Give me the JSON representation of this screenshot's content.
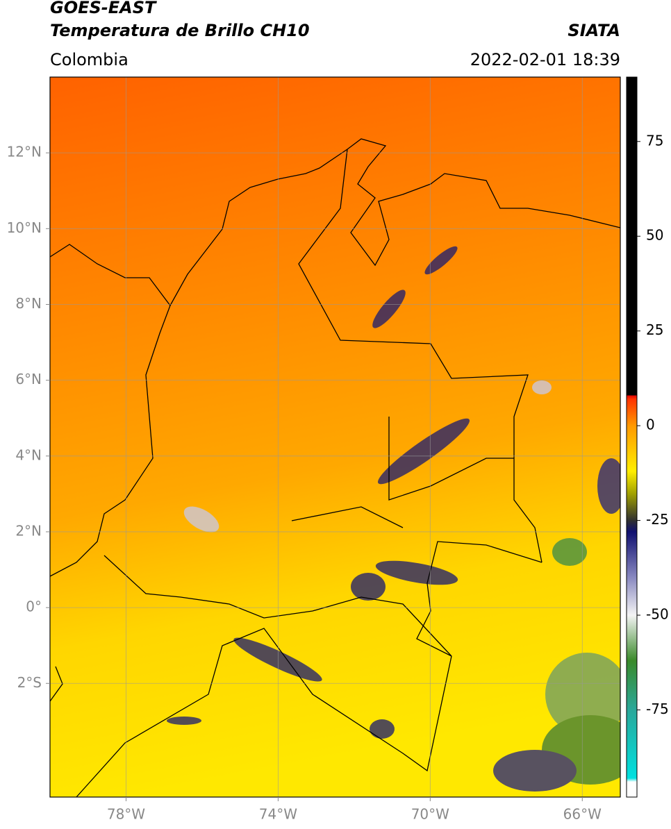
{
  "header": {
    "title": "GOES-EAST",
    "subtitle": "Temperatura de Brillo CH10",
    "source": "SIATA",
    "region": "Colombia",
    "datetime": "2022-02-01 18:39"
  },
  "map": {
    "xlim": [
      -80,
      -65
    ],
    "ylim": [
      -5,
      14
    ],
    "xticks": [
      {
        "value": -78,
        "label": "78°W"
      },
      {
        "value": -74,
        "label": "74°W"
      },
      {
        "value": -70,
        "label": "70°W"
      },
      {
        "value": -66,
        "label": "66°W"
      }
    ],
    "yticks": [
      {
        "value": 12,
        "label": "12°N"
      },
      {
        "value": 10,
        "label": "10°N"
      },
      {
        "value": 8,
        "label": "8°N"
      },
      {
        "value": 6,
        "label": "6°N"
      },
      {
        "value": 4,
        "label": "4°N"
      },
      {
        "value": 2,
        "label": "2°N"
      },
      {
        "value": 0,
        "label": "0°"
      },
      {
        "value": -2,
        "label": "2°S"
      }
    ],
    "grid": true
  },
  "colorbar": {
    "lim": [
      -98,
      92
    ],
    "ticks": [
      75,
      50,
      25,
      0,
      -25,
      -50,
      -75
    ],
    "stops": [
      [
        -98,
        "#ffffff"
      ],
      [
        -94,
        "#ffffff"
      ],
      [
        -93,
        "#00e0e0"
      ],
      [
        -75,
        "#2aa89a"
      ],
      [
        -62,
        "#3a8a2a"
      ],
      [
        -50,
        "#f4f4f4"
      ],
      [
        -40,
        "#8888c0"
      ],
      [
        -28,
        "#101070"
      ],
      [
        -25,
        "#303030"
      ],
      [
        -18,
        "#a0a000"
      ],
      [
        -12,
        "#ffee00"
      ],
      [
        0,
        "#ff9900"
      ],
      [
        7,
        "#ff3300"
      ],
      [
        8,
        "#e00000"
      ],
      [
        8,
        "#000000"
      ],
      [
        92,
        "#000000"
      ]
    ]
  }
}
